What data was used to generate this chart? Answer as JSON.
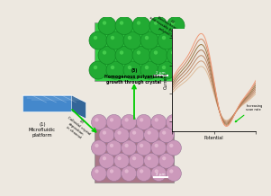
{
  "bg_color": "#ede8e0",
  "step1_label": "(1)\nMicrofluidic\nplatform",
  "step2_label": "(2)\nColloidal crystal\ndeposition\nin channel",
  "step3_label": "(3)\nHomogenous polyaniline\ngrowth through crystal",
  "step4_label": "(4)\nElectrochemically\naddressable flow-through\npolyaniline",
  "scale_bar": "2 μm",
  "cv_xlabel": "Potential",
  "cv_ylabel": "Current",
  "cv_annotation": "Increasing\nscan rate",
  "arrow_color": "#00cc00",
  "microfluidic_color_top": "#6aaaee",
  "microfluidic_color_front": "#4488cc",
  "microfluidic_color_side": "#336699",
  "opal_top_bg": "#bb8899",
  "opal_top_circle": "#cc99bb",
  "opal_top_edge": "#aa7799",
  "opal_bot_bg": "#33bb33",
  "opal_bot_circle": "#229922",
  "opal_bot_edge": "#117711",
  "cv_colors": [
    "#ddbb99",
    "#cc9977",
    "#bb8866",
    "#aa7755",
    "#997744",
    "#cc8866",
    "#ee9977"
  ]
}
